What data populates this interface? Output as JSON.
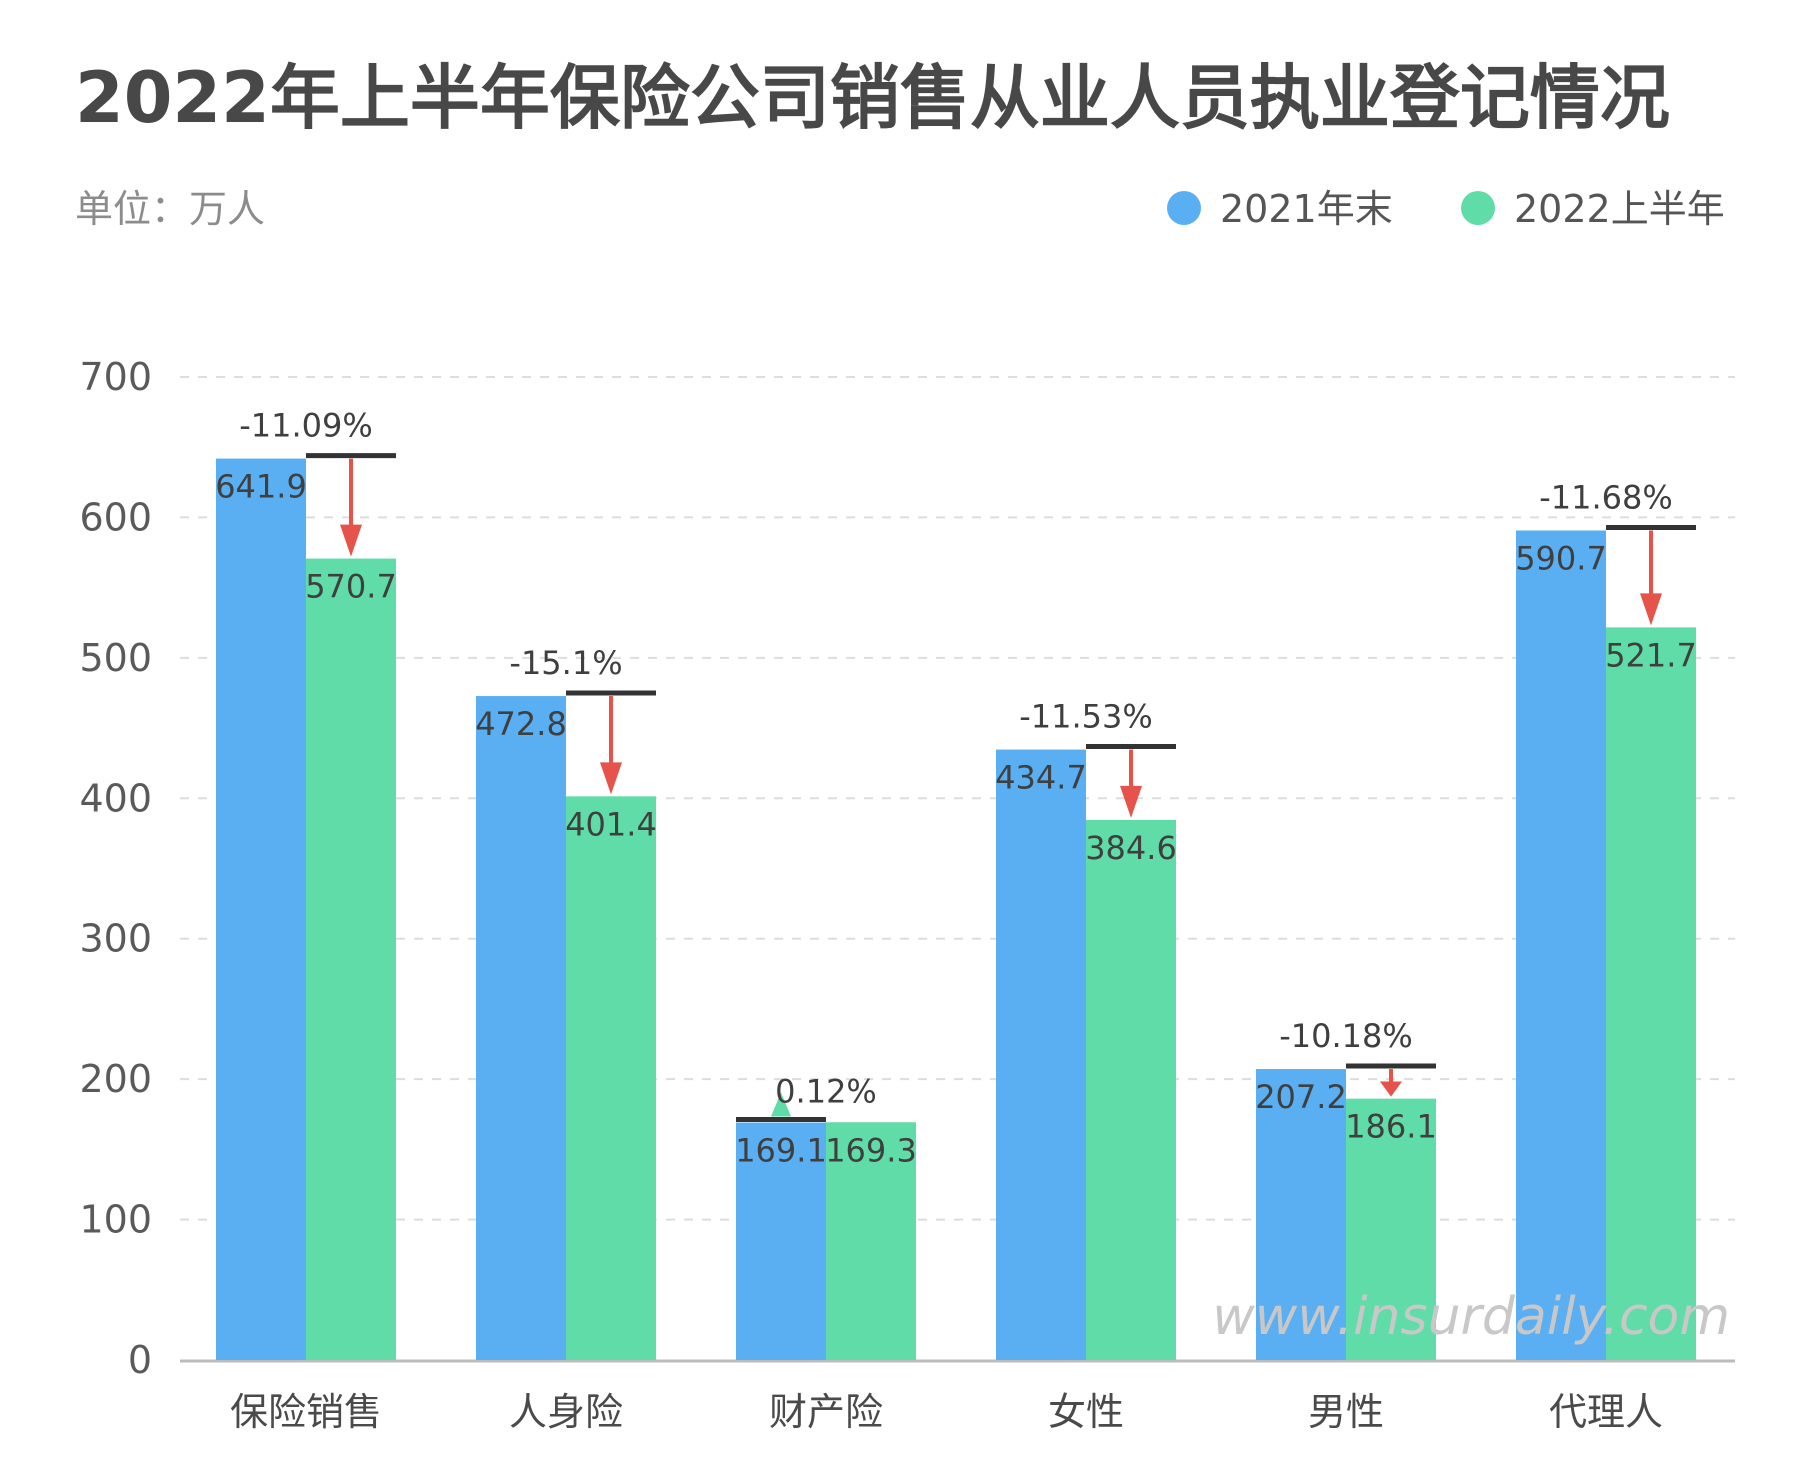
{
  "title": "2022年上半年保险公司销售从业人员执业登记情况",
  "unit_label": "单位：万人",
  "watermark": "www.insurdaily.com",
  "colors": {
    "series_2021": "#5aaef2",
    "series_2022": "#5fdca8",
    "arrow_down": "#e5534b",
    "arrow_up": "#5fdca8",
    "marker": "#333333",
    "grid": "#dddddd",
    "axis": "#bbbbbb"
  },
  "chart_data": {
    "type": "bar",
    "categories": [
      "保险销售",
      "人身险",
      "财产险",
      "女性",
      "男性",
      "代理人"
    ],
    "series": [
      {
        "name": "2021年末",
        "values": [
          641.9,
          472.8,
          169.1,
          434.7,
          207.2,
          590.7
        ]
      },
      {
        "name": "2022上半年",
        "values": [
          570.7,
          401.4,
          169.3,
          384.6,
          186.1,
          521.7
        ]
      }
    ],
    "value_labels": [
      [
        "641.9",
        "472.8",
        "169.1",
        "434.7",
        "207.2",
        "590.7"
      ],
      [
        "570.7",
        "401.4",
        "169.3",
        "384.6",
        "186.1",
        "521.7"
      ]
    ],
    "changes": [
      "-11.09%",
      "-15.1%",
      "0.12%",
      "-11.53%",
      "-10.18%",
      "-11.68%"
    ],
    "y_ticks": [
      "0",
      "100",
      "200",
      "300",
      "400",
      "500",
      "600",
      "700"
    ],
    "ylim": [
      0,
      700
    ],
    "grid": true,
    "legend_position": "top-right"
  }
}
